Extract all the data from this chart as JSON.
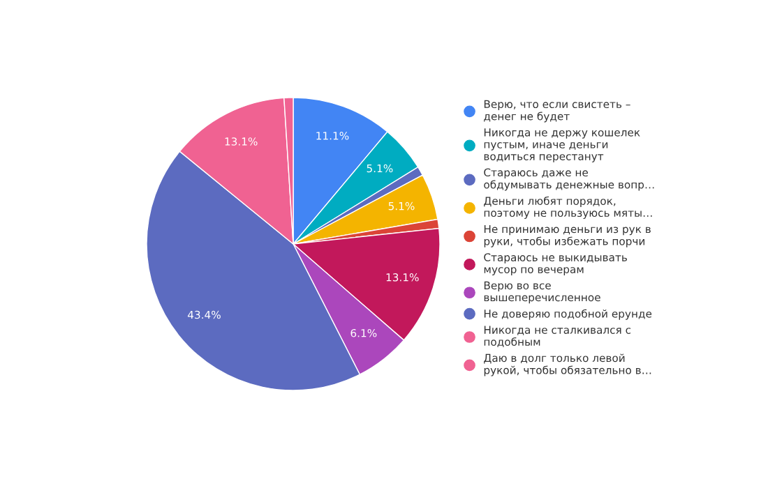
{
  "chart_data": {
    "type": "pie",
    "categories": [
      "Верю, что если свистеть –\nденег не будет",
      "Никогда не держу кошелек\nпустым, иначе деньги\nводиться перестанут",
      "Стараюсь даже не\nобдумывать денежные вопр…",
      "Деньги любят порядок,\nпоэтому не пользуюсь мяты…",
      "Не принимаю деньги из рук в\nруки, чтобы избежать порчи",
      "Стараюсь не выкидывать\nмусор по вечерам",
      "Верю во все\nвышеперечисленное",
      "Не доверяю подобной ерунде",
      "Никогда не сталкивался с\nподобным",
      "Даю в долг только левой\nрукой, чтобы обязательно в…"
    ],
    "values": [
      11.1,
      5.1,
      1.0,
      5.1,
      1.0,
      13.1,
      6.1,
      43.4,
      13.1,
      1.0
    ],
    "colors": [
      "#4285f4",
      "#00acc1",
      "#5c6bc0",
      "#f4b400",
      "#db4437",
      "#c2185b",
      "#ab47bc",
      "#5c6bc0",
      "#f06292",
      "#f06292"
    ],
    "value_labels": [
      "11.1%",
      "5.1%",
      null,
      "5.1%",
      null,
      "13.1%",
      "6.1%",
      "43.4%",
      "13.1%",
      null
    ],
    "legend": "right"
  }
}
